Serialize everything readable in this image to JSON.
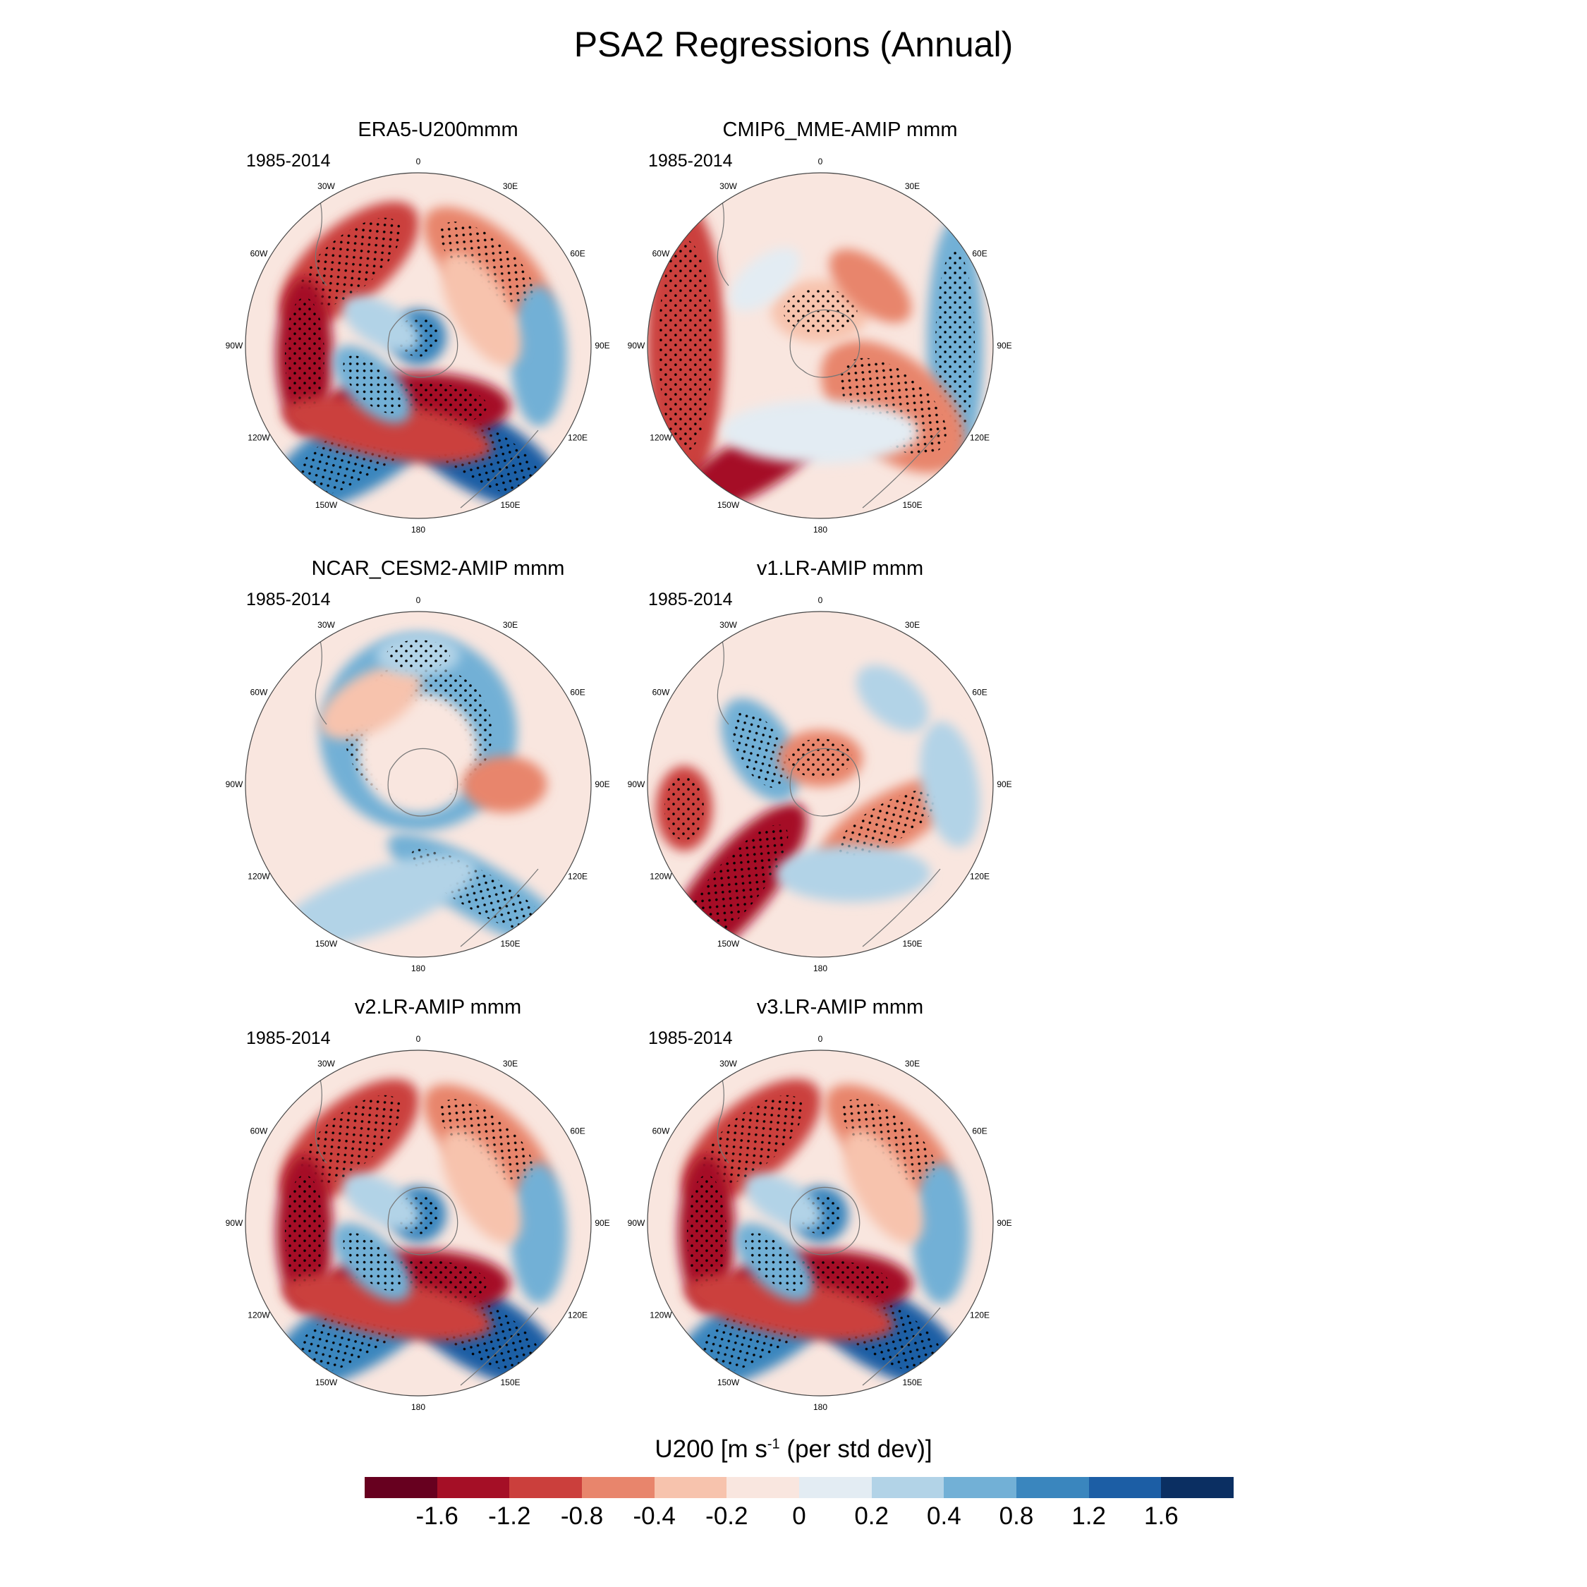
{
  "figure": {
    "title": "PSA2 Regressions (Annual)",
    "period": "1985-2014",
    "lon_labels": [
      "0",
      "30E",
      "60E",
      "90E",
      "120E",
      "150E",
      "180",
      "150W",
      "120W",
      "90W",
      "60W",
      "30W"
    ]
  },
  "panels": [
    {
      "title": "ERA5-U200mmm",
      "pattern": "strong"
    },
    {
      "title": "CMIP6_MME-AMIP  mmm",
      "pattern": "weak-ring"
    },
    {
      "title": "NCAR_CESM2-AMIP  mmm",
      "pattern": "blue-ring"
    },
    {
      "title": "v1.LR-AMIP  mmm",
      "pattern": "patchy"
    },
    {
      "title": "v2.LR-AMIP  mmm",
      "pattern": "strong"
    },
    {
      "title": "v3.LR-AMIP  mmm",
      "pattern": "strong"
    }
  ],
  "colorbar": {
    "title_prefix": "U200 [m s",
    "title_exp": "-1",
    "title_suffix": " (per std dev)]",
    "levels": [
      "-1.6",
      "-1.2",
      "-0.8",
      "-0.4",
      "-0.2",
      "0",
      "0.2",
      "0.4",
      "0.8",
      "1.2",
      "1.6"
    ],
    "colors": [
      "#67001f",
      "#a50f26",
      "#cb3f3c",
      "#e8856c",
      "#f7c3ad",
      "#f9e6df",
      "#e3ecf3",
      "#b2d3e7",
      "#72b0d6",
      "#3a86be",
      "#1c5ea5",
      "#0b2f62"
    ]
  }
}
